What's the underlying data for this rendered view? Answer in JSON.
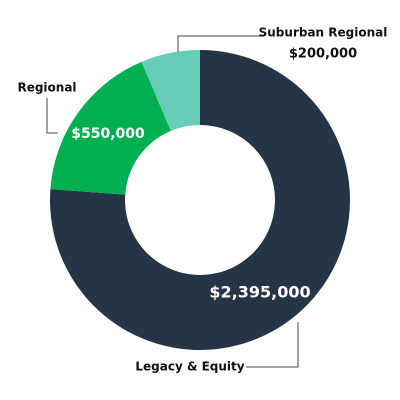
{
  "chart_data": {
    "type": "pie",
    "categories": [
      "Legacy & Equity",
      "Regional",
      "Suburban Regional"
    ],
    "values": [
      2395000,
      550000,
      200000
    ],
    "value_labels": [
      "$2,395,000",
      "$550,000",
      "$200,000"
    ],
    "colors": [
      "#263545",
      "#00b050",
      "#67cdb9"
    ]
  }
}
